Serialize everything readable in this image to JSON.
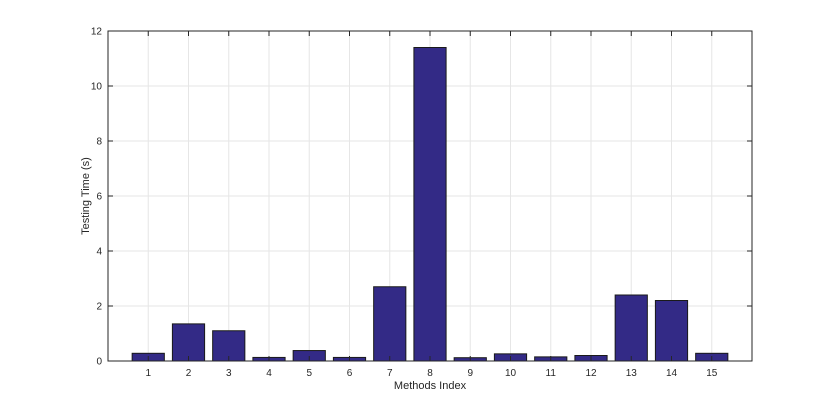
{
  "chart_data": {
    "type": "bar",
    "categories": [
      "1",
      "2",
      "3",
      "4",
      "5",
      "6",
      "7",
      "8",
      "9",
      "10",
      "11",
      "12",
      "13",
      "14",
      "15"
    ],
    "values": [
      0.28,
      1.35,
      1.1,
      0.13,
      0.38,
      0.13,
      2.7,
      11.4,
      0.12,
      0.26,
      0.15,
      0.2,
      2.4,
      2.2,
      0.28
    ],
    "xlabel": "Methods Index",
    "ylabel": "Testing Time (s)",
    "ylim": [
      0,
      12
    ],
    "yticks": [
      0,
      2,
      4,
      6,
      8,
      10,
      12
    ],
    "grid": true,
    "bar_color": "#332a86",
    "edge_color": "#1a1a1a"
  }
}
